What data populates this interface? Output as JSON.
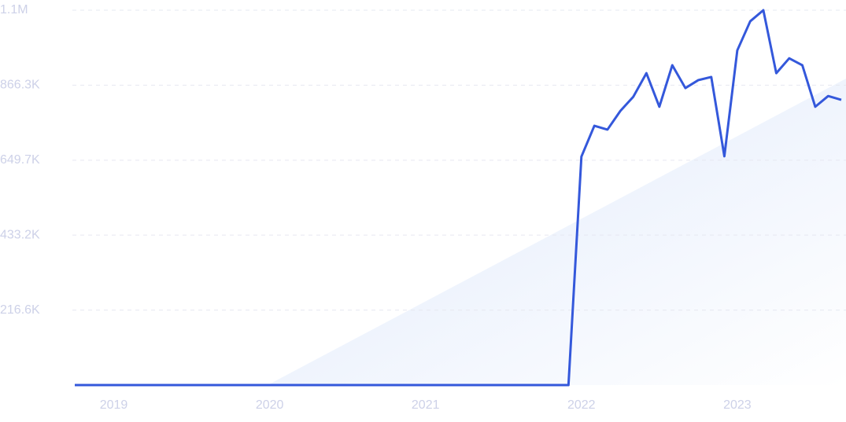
{
  "chart_data": {
    "type": "line",
    "x": [
      2018.75,
      2018.833,
      2018.917,
      2019,
      2019.083,
      2019.167,
      2019.25,
      2019.333,
      2019.417,
      2019.5,
      2019.583,
      2019.667,
      2019.75,
      2019.833,
      2019.917,
      2020,
      2020.083,
      2020.167,
      2020.25,
      2020.333,
      2020.417,
      2020.5,
      2020.583,
      2020.667,
      2020.75,
      2020.833,
      2020.917,
      2021,
      2021.083,
      2021.167,
      2021.25,
      2021.333,
      2021.417,
      2021.5,
      2021.583,
      2021.667,
      2021.75,
      2021.833,
      2021.917,
      2022,
      2022.083,
      2022.167,
      2022.25,
      2022.333,
      2022.417,
      2022.5,
      2022.583,
      2022.667,
      2022.75,
      2022.833,
      2022.917,
      2023,
      2023.083,
      2023.167,
      2023.25,
      2023.333,
      2023.417,
      2023.5,
      2023.583,
      2023.667
    ],
    "series": [
      {
        "color": "#3458db",
        "values": [
          0,
          0,
          0,
          0,
          0,
          0,
          0,
          0,
          0,
          0,
          0,
          0,
          0,
          0,
          0,
          0,
          0,
          0,
          0,
          0,
          0,
          0,
          0,
          0,
          0,
          0,
          0,
          0,
          0,
          0,
          0,
          0,
          0,
          0,
          0,
          0,
          0,
          0,
          0,
          660000,
          749000,
          738000,
          792000,
          833000,
          901000,
          804000,
          924000,
          858000,
          881000,
          890000,
          661000,
          967000,
          1051000,
          1083000,
          901000,
          944000,
          924000,
          804000,
          835000,
          824000
        ]
      }
    ],
    "xlim": [
      2018.75,
      2023.667
    ],
    "xticks": [
      2019,
      2020,
      2021,
      2022,
      2023
    ],
    "ylim": [
      0,
      1082900
    ],
    "yticks": [
      {
        "value": 216600,
        "label": "216.6K"
      },
      {
        "value": 433200,
        "label": "433.2K"
      },
      {
        "value": 649700,
        "label": "649.7K"
      },
      {
        "value": 866300,
        "label": "866.3K"
      },
      {
        "value": 1082900,
        "label": "1.1M"
      }
    ],
    "grid": true
  }
}
